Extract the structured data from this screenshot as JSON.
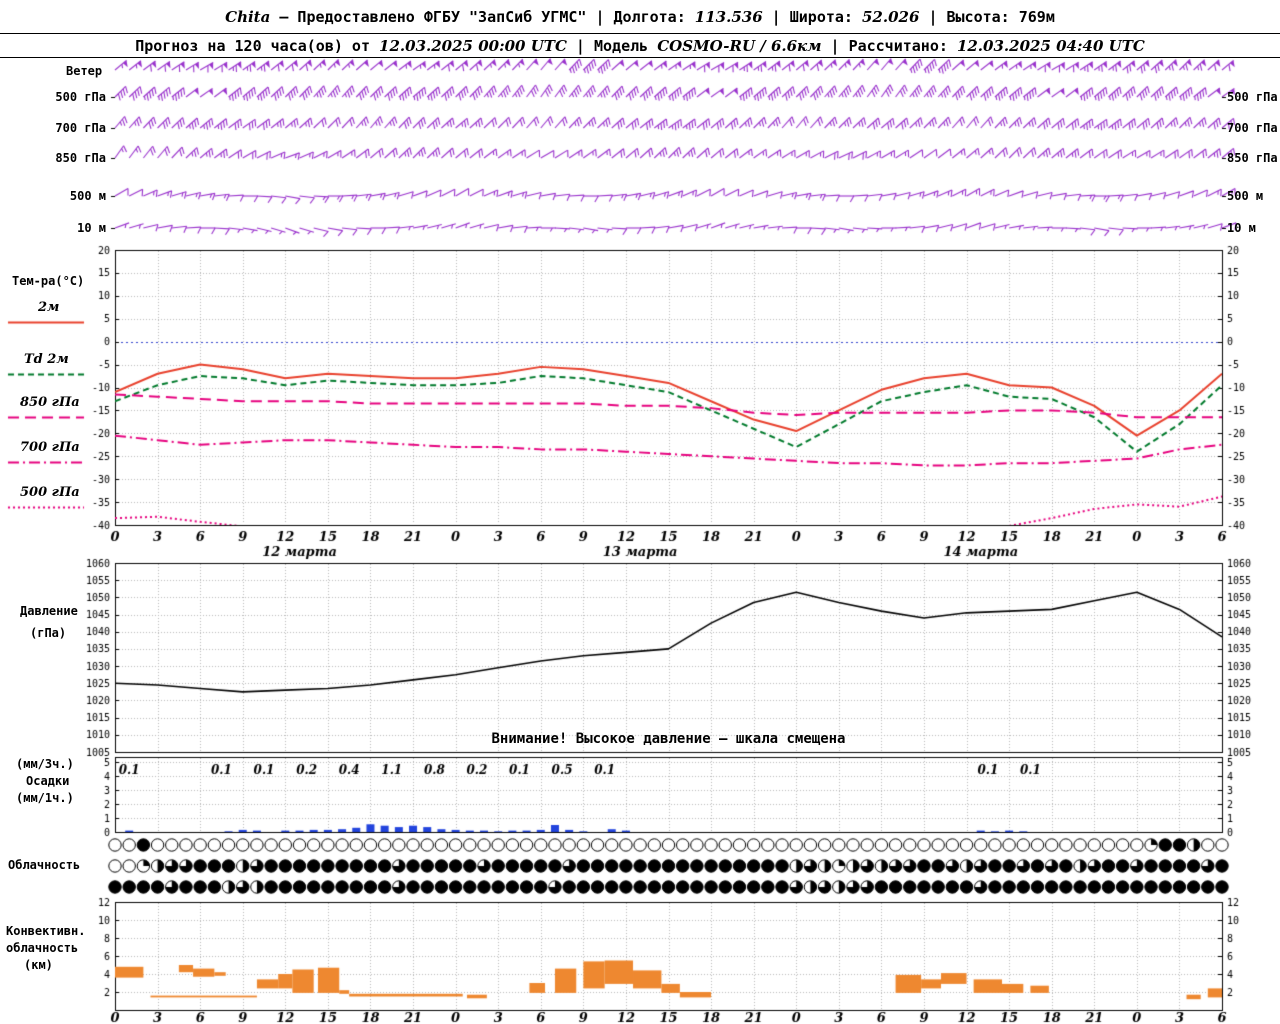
{
  "header": {
    "station": "Chita",
    "dash": "—",
    "provider": "Предоставлено ФГБУ \"ЗапСиб УГМС\"",
    "sep": "|",
    "lon_label": "Долгота:",
    "lon_value": "113.536",
    "lat_label": "Широта:",
    "lat_value": "52.026",
    "alt_label": "Высота:",
    "alt_value": "769м",
    "forecast_label": "Прогноз на 120 часа(ов) от",
    "forecast_start": "12.03.2025 00:00 UTC",
    "model_label": "Модель",
    "model_value": "COSMO-RU / 6.6км",
    "calc_label": "Рассчитано:",
    "calc_value": "12.03.2025 04:40 UTC"
  },
  "labels": {
    "wind": "Ветер",
    "temp": "Тем-ра(°C)",
    "legend": [
      {
        "label": "2м",
        "color": "#e8402c",
        "style": "solid"
      },
      {
        "label": "Td 2м",
        "color": "#007a2c",
        "style": "dashed"
      },
      {
        "label": "850 гПа",
        "color": "#e6007e",
        "style": "longdash"
      },
      {
        "label": "700 гПа",
        "color": "#e6007e",
        "style": "dashdot"
      },
      {
        "label": "500 гПа",
        "color": "#e6007e",
        "style": "dotted"
      }
    ],
    "pressure1": "Давление",
    "pressure2": "(гПа)",
    "warning": "Внимание! Высокое давление — шкала смещена",
    "precip1": "(мм/3ч.)",
    "precip2": "Осадки",
    "precip3": "(мм/1ч.)",
    "cloud": "Облачность",
    "conv1": "Конвективн.",
    "conv2": "облачность",
    "conv3": "(км)",
    "wind_levels": [
      "500 гПа",
      "700 гПа",
      "850 гПа",
      "500 м",
      "10 м"
    ]
  },
  "chart_data": [
    {
      "id": "wind",
      "type": "wind-barbs",
      "color": "#9932cc",
      "barb_units": "kt",
      "x_step_hours": 3,
      "hours_max": 78,
      "rows": [
        {
          "label": "",
          "y": 70,
          "dirs": [
            50,
            55,
            60,
            55,
            50,
            45,
            50,
            55,
            50,
            45,
            40,
            45,
            50,
            55,
            60,
            55,
            50,
            45,
            40,
            45,
            50,
            55,
            60,
            55,
            50,
            45,
            50
          ],
          "speeds_kt": [
            55,
            60,
            60,
            65,
            60,
            55,
            50,
            55,
            60,
            55,
            50,
            45,
            50,
            55,
            60,
            65,
            60,
            55,
            50,
            45,
            50,
            55,
            60,
            65,
            70,
            65,
            60
          ]
        },
        {
          "label": "500 гПа",
          "y": 97,
          "dirs": [
            45,
            50,
            55,
            50,
            45,
            40,
            45,
            50,
            45,
            40,
            35,
            40,
            45,
            50,
            55,
            50,
            45,
            40,
            35,
            40,
            45,
            50,
            55,
            50,
            45,
            50,
            55
          ],
          "speeds_kt": [
            40,
            45,
            50,
            45,
            40,
            35,
            40,
            45,
            40,
            35,
            30,
            35,
            40,
            45,
            50,
            45,
            40,
            35,
            30,
            35,
            40,
            45,
            50,
            45,
            40,
            45,
            50
          ]
        },
        {
          "label": "700 гПа",
          "y": 128,
          "dirs": [
            40,
            45,
            50,
            55,
            50,
            45,
            40,
            45,
            50,
            45,
            40,
            45,
            50,
            55,
            50,
            45,
            40,
            45,
            50,
            45,
            40,
            45,
            50,
            55,
            50,
            45,
            50
          ],
          "speeds_kt": [
            25,
            30,
            35,
            30,
            25,
            20,
            25,
            30,
            25,
            20,
            20,
            25,
            30,
            35,
            30,
            25,
            20,
            25,
            30,
            25,
            20,
            25,
            30,
            35,
            30,
            25,
            30
          ]
        },
        {
          "label": "850 гПа",
          "y": 158,
          "dirs": [
            35,
            40,
            50,
            60,
            70,
            60,
            50,
            45,
            50,
            55,
            60,
            55,
            50,
            45,
            50,
            55,
            60,
            65,
            60,
            55,
            50,
            45,
            50,
            55,
            60,
            55,
            50
          ],
          "speeds_kt": [
            15,
            20,
            25,
            20,
            15,
            15,
            20,
            25,
            20,
            15,
            10,
            15,
            20,
            25,
            20,
            15,
            15,
            20,
            15,
            10,
            15,
            20,
            25,
            20,
            15,
            20,
            25
          ]
        },
        {
          "label": "500 м",
          "y": 196,
          "dirs": [
            60,
            70,
            80,
            90,
            100,
            90,
            80,
            70,
            60,
            70,
            80,
            90,
            80,
            70,
            60,
            70,
            80,
            90,
            80,
            70,
            60,
            70,
            80,
            90,
            80,
            70,
            60
          ],
          "speeds_kt": [
            10,
            15,
            15,
            10,
            10,
            15,
            15,
            10,
            10,
            15,
            10,
            10,
            15,
            15,
            10,
            10,
            15,
            10,
            10,
            15,
            15,
            10,
            10,
            15,
            10,
            10,
            15
          ]
        },
        {
          "label": "10 м",
          "y": 228,
          "dirs": [
            70,
            80,
            90,
            100,
            110,
            100,
            90,
            80,
            70,
            80,
            90,
            100,
            90,
            80,
            70,
            80,
            90,
            100,
            90,
            80,
            70,
            80,
            90,
            100,
            90,
            80,
            70
          ],
          "speeds_kt": [
            5,
            10,
            10,
            5,
            5,
            10,
            10,
            5,
            5,
            10,
            5,
            5,
            10,
            10,
            5,
            5,
            10,
            5,
            5,
            10,
            10,
            5,
            5,
            10,
            5,
            5,
            10
          ]
        }
      ]
    },
    {
      "id": "temperature",
      "type": "line",
      "ylabel": "Тем-ра(°C)",
      "ylim": [
        -40,
        20
      ],
      "ytick": 5,
      "x_hours": [
        0,
        3,
        6,
        9,
        12,
        15,
        18,
        21,
        24,
        27,
        30,
        33,
        36,
        39,
        42,
        45,
        48,
        51,
        54,
        57,
        60,
        63,
        66,
        69,
        72,
        75,
        78
      ],
      "x_tick_labels": [
        "0",
        "3",
        "6",
        "9",
        "12",
        "15",
        "18",
        "21",
        "0",
        "3",
        "6",
        "9",
        "12",
        "15",
        "18",
        "21",
        "0",
        "3",
        "6",
        "9",
        "12",
        "15",
        "18",
        "21",
        "0",
        "3",
        "6"
      ],
      "date_labels": [
        {
          "h": 13,
          "label": "12 марта"
        },
        {
          "h": 37,
          "label": "13 марта"
        },
        {
          "h": 61,
          "label": "14 марта"
        }
      ],
      "series": [
        {
          "name": "T 2м",
          "color": "#e8402c",
          "dash": "solid",
          "values": [
            -11,
            -7,
            -5,
            -6,
            -8,
            -7,
            -7.5,
            -8,
            -8,
            -7,
            -5.5,
            -6,
            -7.5,
            -9,
            -13,
            -17,
            -19.5,
            -15,
            -10.5,
            -8,
            -7,
            -9.5,
            -10,
            -14,
            -20.5,
            -15,
            -7
          ]
        },
        {
          "name": "Td 2м",
          "color": "#007a2c",
          "dash": "dashed",
          "values": [
            -13,
            -9.5,
            -7.5,
            -8,
            -9.5,
            -8.5,
            -9,
            -9.5,
            -9.5,
            -9,
            -7.5,
            -8,
            -9.5,
            -11,
            -15,
            -19,
            -23,
            -18,
            -13,
            -11,
            -9.5,
            -12,
            -12.5,
            -16.5,
            -24,
            -18,
            -9.5
          ]
        },
        {
          "name": "T 850 гПа",
          "color": "#e6007e",
          "dash": "longdash",
          "values": [
            -11.5,
            -12,
            -12.5,
            -13,
            -13,
            -13,
            -13.5,
            -13.5,
            -13.5,
            -13.5,
            -13.5,
            -13.5,
            -14,
            -14,
            -14.5,
            -15.5,
            -16,
            -15.5,
            -15.5,
            -15.5,
            -15.5,
            -15,
            -15,
            -15.5,
            -16.5,
            -16.5,
            -16.5
          ]
        },
        {
          "name": "T 700 гПа",
          "color": "#e6007e",
          "dash": "dashdot",
          "values": [
            -20.5,
            -21.5,
            -22.5,
            -22,
            -21.5,
            -21.5,
            -22,
            -22.5,
            -23,
            -23,
            -23.5,
            -23.5,
            -24,
            -24.5,
            -25,
            -25.5,
            -26,
            -26.5,
            -26.5,
            -27,
            -27,
            -26.5,
            -26.5,
            -26,
            -25.5,
            -23.5,
            -22.5
          ]
        },
        {
          "name": "T 500 гПа",
          "color": "#e6007e",
          "dash": "dot",
          "values": [
            -38.5,
            -38.2,
            -39.3,
            -40.3,
            null,
            null,
            null,
            null,
            null,
            null,
            null,
            null,
            null,
            null,
            null,
            null,
            null,
            null,
            null,
            null,
            null,
            -40.2,
            -38.5,
            -36.5,
            -35.5,
            -36,
            -33.8
          ]
        }
      ]
    },
    {
      "id": "pressure",
      "type": "line",
      "ylabel": "Давление (гПа)",
      "ylim": [
        1005,
        1060
      ],
      "ytick": 5,
      "color": "#000000",
      "note": "Внимание! Высокое давление — шкала смещена",
      "values": [
        1025,
        1024.5,
        1023.5,
        1022.5,
        1023,
        1023.5,
        1024.5,
        1026,
        1027.5,
        1029.5,
        1031.5,
        1033,
        1034,
        1035,
        1042.5,
        1048.5,
        1051.5,
        1048.5,
        1046,
        1044,
        1045.5,
        1046,
        1046.5,
        1049,
        1051.5,
        1046.5,
        1038.5
      ]
    },
    {
      "id": "precipitation",
      "type": "bar",
      "ylabel": "Осадки (мм/3ч. и мм/1ч.)",
      "ylim": [
        0,
        5
      ],
      "bar_color": "#2244dd",
      "labels_3h": [
        {
          "h": 1,
          "v": "0.1"
        },
        {
          "h": 7.5,
          "v": "0.1"
        },
        {
          "h": 10.5,
          "v": "0.1"
        },
        {
          "h": 13.5,
          "v": "0.2"
        },
        {
          "h": 16.5,
          "v": "0.4"
        },
        {
          "h": 19.5,
          "v": "1.1"
        },
        {
          "h": 22.5,
          "v": "0.8"
        },
        {
          "h": 25.5,
          "v": "0.2"
        },
        {
          "h": 28.5,
          "v": "0.1"
        },
        {
          "h": 31.5,
          "v": "0.5"
        },
        {
          "h": 34.5,
          "v": "0.1"
        },
        {
          "h": 61.5,
          "v": "0.1"
        },
        {
          "h": 64.5,
          "v": "0.1"
        }
      ],
      "hourly_mm": [
        {
          "h": 1,
          "v": 0.1
        },
        {
          "h": 8,
          "v": 0.05
        },
        {
          "h": 9,
          "v": 0.15
        },
        {
          "h": 10,
          "v": 0.1
        },
        {
          "h": 12,
          "v": 0.1
        },
        {
          "h": 13,
          "v": 0.1
        },
        {
          "h": 14,
          "v": 0.15
        },
        {
          "h": 15,
          "v": 0.15
        },
        {
          "h": 16,
          "v": 0.2
        },
        {
          "h": 17,
          "v": 0.3
        },
        {
          "h": 18,
          "v": 0.55
        },
        {
          "h": 19,
          "v": 0.45
        },
        {
          "h": 20,
          "v": 0.35
        },
        {
          "h": 21,
          "v": 0.45
        },
        {
          "h": 22,
          "v": 0.35
        },
        {
          "h": 23,
          "v": 0.2
        },
        {
          "h": 24,
          "v": 0.15
        },
        {
          "h": 25,
          "v": 0.1
        },
        {
          "h": 26,
          "v": 0.1
        },
        {
          "h": 27,
          "v": 0.05
        },
        {
          "h": 28,
          "v": 0.1
        },
        {
          "h": 29,
          "v": 0.1
        },
        {
          "h": 30,
          "v": 0.15
        },
        {
          "h": 31,
          "v": 0.5
        },
        {
          "h": 32,
          "v": 0.15
        },
        {
          "h": 33,
          "v": 0.05
        },
        {
          "h": 35,
          "v": 0.2
        },
        {
          "h": 36,
          "v": 0.1
        },
        {
          "h": 61,
          "v": 0.1
        },
        {
          "h": 62,
          "v": 0.05
        },
        {
          "h": 63,
          "v": 0.1
        },
        {
          "h": 64,
          "v": 0.05
        }
      ]
    },
    {
      "id": "cloud_cover",
      "type": "symbol-rows",
      "scale": "eighths 0-8 per hourly circle, rows top/middle/bottom",
      "rows": [
        "0080000000000000000000000000000000000000000000000000000000000000000000000288400",
        "0024668884688888888868888868888868888888888888884642464668864688686846886888868",
        "8888688846488888888868888888888688888888888888886464668888888688888888888888888"
      ]
    },
    {
      "id": "convective_clouds",
      "type": "range-bar",
      "ylabel": "Конвективн. облачность (км)",
      "ylim": [
        0,
        12
      ],
      "color": "#ee8830",
      "segments": [
        [
          0,
          2,
          3.6,
          4.8
        ],
        [
          2.5,
          10,
          1.4,
          1.6
        ],
        [
          4.5,
          5.5,
          4.2,
          5
        ],
        [
          5.5,
          7,
          3.7,
          4.6
        ],
        [
          7,
          7.8,
          3.8,
          4.2
        ],
        [
          10,
          11.5,
          2.4,
          3.4
        ],
        [
          11.5,
          12.5,
          2.4,
          4
        ],
        [
          12.5,
          14,
          1.9,
          4.5
        ],
        [
          14.3,
          15.8,
          1.9,
          4.7
        ],
        [
          15.8,
          16.5,
          1.8,
          2.2
        ],
        [
          16.5,
          24.5,
          1.5,
          1.8
        ],
        [
          24.8,
          26.2,
          1.3,
          1.7
        ],
        [
          29.2,
          30.3,
          1.9,
          3
        ],
        [
          31,
          32.5,
          1.9,
          4.6
        ],
        [
          33,
          34.5,
          2.4,
          5.4
        ],
        [
          34.5,
          36.5,
          2.9,
          5.5
        ],
        [
          36.5,
          38.5,
          2.4,
          4.4
        ],
        [
          38.5,
          39.8,
          1.9,
          2.9
        ],
        [
          39.8,
          42,
          1.4,
          2
        ],
        [
          55,
          56.8,
          1.9,
          3.9
        ],
        [
          56.8,
          58.2,
          2.4,
          3.4
        ],
        [
          58.2,
          60,
          2.9,
          4.1
        ],
        [
          60.5,
          62.5,
          1.9,
          3.4
        ],
        [
          62.5,
          64,
          1.9,
          2.9
        ],
        [
          64.5,
          65.8,
          1.9,
          2.7
        ],
        [
          75.5,
          76.5,
          1.2,
          1.7
        ],
        [
          77,
          78,
          1.4,
          2.4
        ]
      ]
    }
  ]
}
